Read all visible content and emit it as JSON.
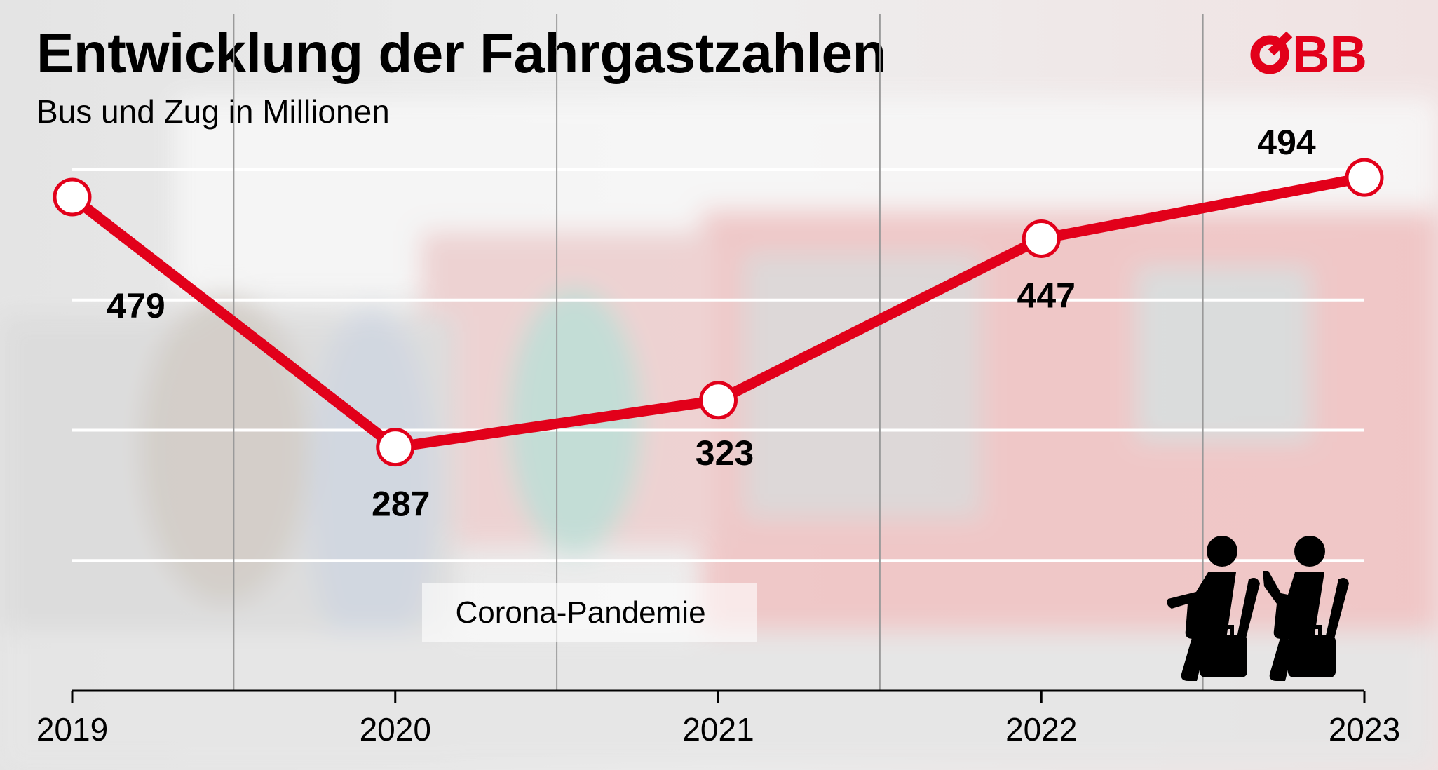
{
  "header": {
    "title": "Entwicklung der Fahrgastzahlen",
    "subtitle": "Bus und Zug in Millionen"
  },
  "logo": {
    "text": "ÖBB",
    "color": "#E2001A"
  },
  "icon": "seated-passengers-with-luggage-icon",
  "chart_data": {
    "type": "line",
    "title": "Entwicklung der Fahrgastzahlen",
    "subtitle": "Bus und Zug in Millionen",
    "categories": [
      "2019",
      "2020",
      "2021",
      "2022",
      "2023"
    ],
    "values": [
      479,
      287,
      323,
      447,
      494
    ],
    "data_labels": [
      "479",
      "287",
      "323",
      "447",
      "494"
    ],
    "ylim": [
      100,
      500
    ],
    "gridlines": [
      200,
      300,
      400,
      500
    ],
    "grid": true,
    "line_color": "#E2001A",
    "annotation": "Corona-Pandemie",
    "xlabel": "",
    "ylabel": ""
  }
}
